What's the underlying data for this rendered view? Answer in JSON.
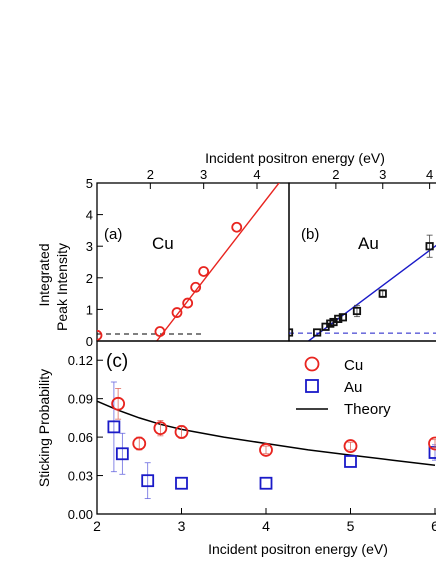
{
  "chart_data": [
    {
      "panel_label": "(a)",
      "type": "scatter",
      "title": "Cu",
      "xlabel": "",
      "ylabel_lines": [
        "Integrated",
        "Peak Intensity"
      ],
      "top_xlabel": "Incident positron energy (eV)",
      "xlim": [
        1.0,
        4.6
      ],
      "ylim": [
        0,
        5
      ],
      "xticks": [
        2,
        3,
        4
      ],
      "yticks": [
        0,
        1,
        2,
        3,
        4,
        5
      ],
      "color": "#e8241f",
      "marker": "circle",
      "points": [
        {
          "x": 1.0,
          "y": 0.18
        },
        {
          "x": 2.18,
          "y": 0.3
        },
        {
          "x": 2.5,
          "y": 0.9
        },
        {
          "x": 2.7,
          "y": 1.2
        },
        {
          "x": 2.85,
          "y": 1.7
        },
        {
          "x": 3.0,
          "y": 2.2
        },
        {
          "x": 3.62,
          "y": 3.6
        }
      ],
      "fit_line": {
        "x": [
          2.12,
          4.55
        ],
        "y": [
          0.0,
          5.3
        ]
      },
      "baseline": {
        "x": [
          1.0,
          3.0
        ],
        "y": 0.22
      }
    },
    {
      "panel_label": "(b)",
      "type": "scatter",
      "title": "Au",
      "xlim": [
        1.0,
        4.2
      ],
      "ylim": [
        0,
        5
      ],
      "xticks": [
        2,
        3,
        4
      ],
      "color": "#1a1ac8",
      "marker": "square",
      "points": [
        {
          "x": 1.0,
          "y": 0.27
        },
        {
          "x": 1.6,
          "y": 0.27
        },
        {
          "x": 1.78,
          "y": 0.45
        },
        {
          "x": 1.88,
          "y": 0.55
        },
        {
          "x": 1.95,
          "y": 0.6
        },
        {
          "x": 2.05,
          "y": 0.7
        },
        {
          "x": 2.15,
          "y": 0.75
        },
        {
          "x": 2.45,
          "y": 0.95,
          "err": 0.18
        },
        {
          "x": 3.0,
          "y": 1.5,
          "err": 0.12
        },
        {
          "x": 4.0,
          "y": 3.0,
          "err": 0.35
        }
      ],
      "fit_line": {
        "x": [
          1.28,
          4.3
        ],
        "y": [
          -0.15,
          3.2
        ]
      },
      "baseline": {
        "x": [
          1.0,
          4.3
        ],
        "y": 0.25
      }
    },
    {
      "panel_label": "(c)",
      "type": "scatter",
      "xlabel": "Incident positron energy (eV)",
      "ylabel": "Sticking Probability",
      "xlim": [
        2,
        6
      ],
      "ylim": [
        0,
        0.135
      ],
      "xticks": [
        2,
        3,
        4,
        5,
        6
      ],
      "xtick_labels": [
        "2",
        "3",
        "4",
        "5",
        "6"
      ],
      "yticks": [
        0.0,
        0.03,
        0.06,
        0.09,
        0.12
      ],
      "ytick_labels": [
        "0.00",
        "0.03",
        "0.06",
        "0.09",
        "0.12"
      ],
      "legend_position": "top-right",
      "series": [
        {
          "name": "Cu",
          "color": "#e8241f",
          "marker": "circle",
          "points": [
            {
              "x": 2.25,
              "y": 0.086,
              "err": 0.012
            },
            {
              "x": 2.5,
              "y": 0.055,
              "err": 0.005
            },
            {
              "x": 2.75,
              "y": 0.067,
              "err": 0.006
            },
            {
              "x": 3.0,
              "y": 0.064,
              "err": 0.005
            },
            {
              "x": 4.0,
              "y": 0.05,
              "err": 0.003
            },
            {
              "x": 5.0,
              "y": 0.053,
              "err": 0.003
            },
            {
              "x": 6.0,
              "y": 0.055,
              "err": 0.003
            }
          ]
        },
        {
          "name": "Au",
          "color": "#1a1ac8",
          "marker": "square",
          "points": [
            {
              "x": 2.2,
              "y": 0.068,
              "err": 0.035
            },
            {
              "x": 2.3,
              "y": 0.047,
              "err": 0.016
            },
            {
              "x": 2.6,
              "y": 0.026,
              "err": 0.014
            },
            {
              "x": 3.0,
              "y": 0.024
            },
            {
              "x": 4.0,
              "y": 0.024
            },
            {
              "x": 5.0,
              "y": 0.041
            },
            {
              "x": 6.0,
              "y": 0.048,
              "err": 0.006
            }
          ]
        },
        {
          "name": "Theory",
          "color": "#000000",
          "type": "line",
          "x": [
            2.0,
            2.25,
            2.5,
            2.75,
            3.0,
            3.5,
            4.0,
            4.5,
            5.0,
            5.5,
            6.0
          ],
          "y": [
            0.088,
            0.081,
            0.075,
            0.07,
            0.066,
            0.06,
            0.055,
            0.05,
            0.046,
            0.042,
            0.038
          ]
        }
      ]
    }
  ]
}
